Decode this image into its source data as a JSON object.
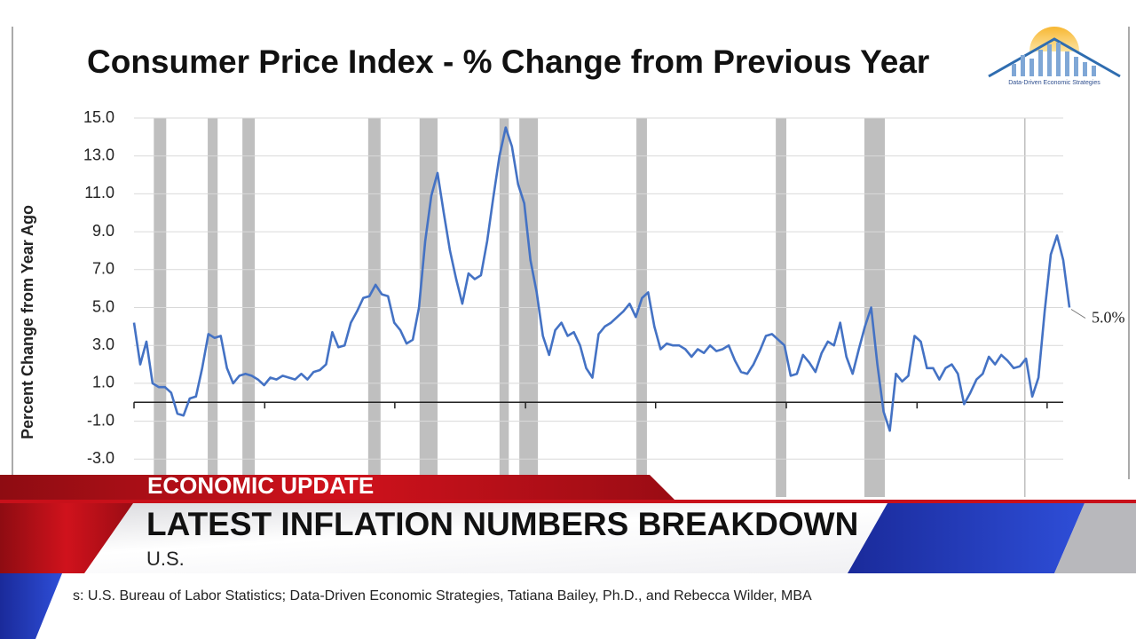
{
  "chart_data": {
    "type": "line",
    "title": "Consumer Price Index - % Change from Previous Year",
    "y_label": "Percent Change from Year Ago",
    "annotation": "5.0%",
    "color": "#4472c4",
    "band_color": "#bfbfbf",
    "grid": true,
    "ylim": [
      -5,
      15
    ],
    "yticks": [
      {
        "value": 15,
        "label": "15.0"
      },
      {
        "value": 13,
        "label": "13.0"
      },
      {
        "value": 11,
        "label": "11.0"
      },
      {
        "value": 9,
        "label": "9.0"
      },
      {
        "value": 7,
        "label": "7.0"
      },
      {
        "value": 5,
        "label": "5.0"
      },
      {
        "value": 3,
        "label": "3.0"
      },
      {
        "value": 1,
        "label": "1.0"
      },
      {
        "value": -1,
        "label": "-1.0"
      },
      {
        "value": -3,
        "label": "-3.0"
      }
    ],
    "xlim": [
      0,
      150
    ],
    "xticks": [
      0,
      21.1,
      42.1,
      63.2,
      84.2,
      105.3,
      126.4,
      147.4
    ],
    "recession_bands": [
      [
        3.2,
        5.2
      ],
      [
        11.9,
        13.5
      ],
      [
        17.5,
        19.5
      ],
      [
        37.8,
        39.8
      ],
      [
        46.1,
        49.0
      ],
      [
        59.0,
        60.5
      ],
      [
        62.2,
        65.2
      ],
      [
        81.1,
        82.8
      ],
      [
        103.6,
        105.3
      ],
      [
        117.9,
        121.2
      ],
      [
        143.7,
        143.9
      ]
    ],
    "values": [
      4.2,
      2.0,
      3.2,
      1.0,
      0.8,
      0.8,
      0.5,
      -0.6,
      -0.7,
      0.2,
      0.3,
      1.8,
      3.6,
      3.4,
      3.5,
      1.8,
      1.0,
      1.4,
      1.5,
      1.4,
      1.2,
      0.9,
      1.3,
      1.2,
      1.4,
      1.3,
      1.2,
      1.5,
      1.2,
      1.6,
      1.7,
      2.0,
      3.7,
      2.9,
      3.0,
      4.2,
      4.8,
      5.5,
      5.6,
      6.2,
      5.7,
      5.6,
      4.2,
      3.8,
      3.1,
      3.3,
      5.0,
      8.5,
      10.9,
      12.1,
      10.0,
      8.0,
      6.5,
      5.2,
      6.8,
      6.5,
      6.7,
      8.5,
      10.8,
      13.0,
      14.5,
      13.5,
      11.5,
      10.5,
      7.5,
      5.8,
      3.5,
      2.5,
      3.8,
      4.2,
      3.5,
      3.7,
      3.0,
      1.8,
      1.3,
      3.6,
      4.0,
      4.2,
      4.5,
      4.8,
      5.2,
      4.5,
      5.5,
      5.8,
      4.0,
      2.8,
      3.1,
      3.0,
      3.0,
      2.8,
      2.4,
      2.8,
      2.6,
      3.0,
      2.7,
      2.8,
      3.0,
      2.2,
      1.6,
      1.5,
      2.0,
      2.7,
      3.5,
      3.6,
      3.3,
      3.0,
      1.4,
      1.5,
      2.5,
      2.1,
      1.6,
      2.6,
      3.2,
      3.0,
      4.2,
      2.4,
      1.5,
      2.8,
      4.0,
      5.0,
      2.0,
      -0.5,
      -1.5,
      1.5,
      1.1,
      1.4,
      3.5,
      3.2,
      1.8,
      1.8,
      1.2,
      1.8,
      2.0,
      1.5,
      -0.1,
      0.5,
      1.2,
      1.5,
      2.4,
      2.0,
      2.5,
      2.2,
      1.8,
      1.9,
      2.3,
      0.3,
      1.3,
      4.8,
      7.8,
      8.8,
      7.5,
      5.0
    ]
  },
  "logo_text": "Data-Driven Economic Strategies",
  "banner": {
    "kicker": "ECONOMIC UPDATE",
    "headline": "LATEST INFLATION NUMBERS BREAKDOWN",
    "location": "U.S."
  },
  "source": "s: U.S. Bureau of Labor Statistics; Data-Driven Economic Strategies, Tatiana Bailey, Ph.D., and Rebecca Wilder, MBA"
}
